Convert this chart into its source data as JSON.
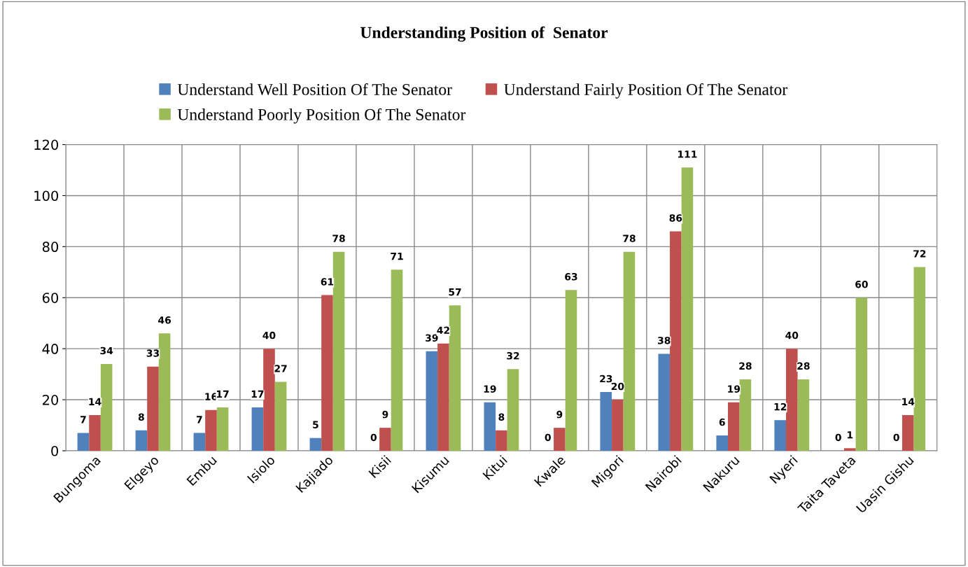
{
  "chart_data": {
    "type": "bar",
    "title": "Understanding Position of  Senator",
    "categories": [
      "Bungoma",
      "Elgeyo",
      "Embu",
      "Isiolo",
      "Kajiado",
      "Kisii",
      "Kisumu",
      "Kitui",
      "Kwale",
      "Migori",
      "Nairobi",
      "Nakuru",
      "Nyeri",
      "Taita Taveta",
      "Uasin Gishu"
    ],
    "series": [
      {
        "name": "Understand Well Position Of The Senator",
        "color": "#4f81bd",
        "values": [
          7,
          8,
          7,
          17,
          5,
          0,
          39,
          19,
          0,
          23,
          38,
          6,
          12,
          0,
          0
        ]
      },
      {
        "name": "Understand Fairly Position Of The Senator",
        "color": "#c0504d",
        "values": [
          14,
          33,
          16,
          40,
          61,
          9,
          42,
          8,
          9,
          20,
          86,
          19,
          40,
          1,
          14
        ]
      },
      {
        "name": "Understand Poorly Position Of The Senator",
        "color": "#9bbb59",
        "values": [
          34,
          46,
          17,
          27,
          78,
          71,
          57,
          32,
          63,
          78,
          111,
          28,
          28,
          60,
          72
        ]
      }
    ],
    "ylim": [
      0,
      120
    ],
    "yticks": [
      0,
      20,
      40,
      60,
      80,
      100,
      120
    ],
    "grid": true,
    "legend": "top",
    "data_labels": true
  }
}
